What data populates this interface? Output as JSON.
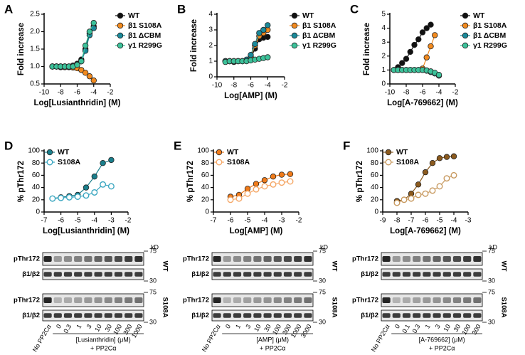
{
  "chart_data": [
    {
      "type": "line",
      "label": "A",
      "ylabel": "Fold increase",
      "xlabel": "Log[Lusianthridin] (M)",
      "legend": "right",
      "xlim": [
        -10,
        -2
      ],
      "xticks": [
        -10,
        -8,
        -6,
        -4,
        -2
      ],
      "ylim": [
        0.5,
        2.5
      ],
      "yticks": [
        0.5,
        {
          "value": 1,
          "label": "1.0"
        },
        1.5,
        {
          "value": 2,
          "label": "2.0"
        },
        2.5
      ],
      "x": [
        -9,
        -8.5,
        -8,
        -7.5,
        -7,
        -6.5,
        -6,
        -5.5,
        -5,
        -4.5,
        -4
      ],
      "series": [
        {
          "name": "WT",
          "color": "#111111",
          "marker": "filled",
          "values": [
            1,
            1,
            0.98,
            1,
            1,
            1.03,
            1.08,
            1.2,
            1.5,
            1.95,
            2.15
          ]
        },
        {
          "name": "β1 S108A",
          "color": "#f28a1e",
          "marker": "filled",
          "values": [
            1,
            1,
            1,
            0.98,
            0.98,
            0.97,
            0.95,
            0.9,
            0.82,
            0.72,
            0.6
          ]
        },
        {
          "name": "β1 ΔCBM",
          "color": "#1a8a9a",
          "marker": "filled",
          "values": [
            1,
            1,
            1,
            1,
            0.99,
            1.02,
            1.05,
            1.15,
            1.45,
            1.9,
            2.1
          ]
        },
        {
          "name": "γ1 R299G",
          "color": "#3cc29a",
          "marker": "filled",
          "values": [
            1,
            1,
            1,
            1,
            1,
            1,
            1.05,
            1.15,
            1.6,
            2.0,
            2.25
          ]
        }
      ]
    },
    {
      "type": "line",
      "label": "B",
      "ylabel": "Fold increase",
      "xlabel": "Log[AMP] (M)",
      "legend": "right",
      "xlim": [
        -10,
        -2
      ],
      "xticks": [
        -10,
        -8,
        -6,
        -4,
        -2
      ],
      "ylim": [
        0,
        4
      ],
      "yticks": [
        0,
        1,
        2,
        3,
        4
      ],
      "x": [
        -9,
        -8.5,
        -8,
        -7.5,
        -7,
        -6.5,
        -6,
        -5.5,
        -5,
        -4.5,
        -4
      ],
      "series": [
        {
          "name": "WT",
          "color": "#111111",
          "marker": "filled",
          "values": [
            1,
            1,
            0.95,
            1,
            1,
            1.02,
            1.2,
            1.8,
            2.4,
            2.5,
            2.55
          ]
        },
        {
          "name": "β1 S108A",
          "color": "#f28a1e",
          "marker": "filled",
          "values": [
            1,
            1,
            1,
            1,
            1,
            1.05,
            1.3,
            2.0,
            2.6,
            2.8,
            3.0
          ]
        },
        {
          "name": "β1 ΔCBM",
          "color": "#1a8a9a",
          "marker": "filled",
          "values": [
            1,
            1,
            1,
            1,
            1,
            1.1,
            1.4,
            2.1,
            2.8,
            3.0,
            3.3
          ]
        },
        {
          "name": "γ1 R299G",
          "color": "#3cc29a",
          "marker": "filled",
          "values": [
            0.95,
            1,
            1,
            1,
            1,
            1,
            1.05,
            1.1,
            1.15,
            1.2,
            1.25
          ]
        }
      ]
    },
    {
      "type": "line",
      "label": "C",
      "ylabel": "Fold increase",
      "xlabel": "Log[A-769662] (M)",
      "legend": "right",
      "xlim": [
        -10,
        -2
      ],
      "xticks": [
        -10,
        -8,
        -6,
        -4,
        -2
      ],
      "ylim": [
        0,
        5
      ],
      "yticks": [
        0,
        1,
        2,
        3,
        4,
        5
      ],
      "x": [
        -9.5,
        -9,
        -8.5,
        -8,
        -7.5,
        -7,
        -6.5,
        -6,
        -5.5,
        -5,
        -4.5,
        -4
      ],
      "series": [
        {
          "name": "WT",
          "color": "#111111",
          "marker": "filled",
          "values": [
            1,
            1.2,
            1.5,
            1.8,
            2.3,
            2.8,
            3.2,
            3.7,
            4.0,
            4.25,
            null,
            null
          ]
        },
        {
          "name": "β1 S108A",
          "color": "#f28a1e",
          "marker": "filled",
          "values": [
            1,
            1,
            1,
            1,
            1,
            1,
            1,
            1.1,
            1.9,
            2.7,
            3.5,
            null
          ]
        },
        {
          "name": "β1 ΔCBM",
          "color": "#1a8a9a",
          "marker": "filled",
          "values": [
            1,
            1,
            1,
            1,
            1,
            1,
            1,
            1,
            0.95,
            0.85,
            0.75,
            0.6
          ]
        },
        {
          "name": "γ1 R299G",
          "color": "#3cc29a",
          "marker": "filled",
          "values": [
            1,
            1,
            1,
            1,
            1,
            1,
            1,
            1,
            0.97,
            0.9,
            0.8,
            0.65
          ]
        }
      ]
    },
    {
      "type": "line",
      "label": "D",
      "ylabel": "% pThr172",
      "xlabel": "Log[Lusianthridin] (M)",
      "legend": "upper left",
      "xlim": [
        -7,
        -2
      ],
      "xticks": [
        -7,
        -6,
        -5,
        -4,
        -3,
        -2
      ],
      "ylim": [
        0,
        100
      ],
      "yticks": [
        0,
        20,
        40,
        60,
        80,
        100
      ],
      "x": [
        -6.5,
        -6,
        -5.5,
        -5,
        -4.5,
        -4,
        -3.5,
        -3
      ],
      "series": [
        {
          "name": "WT",
          "color": "#1a7f8c",
          "marker": "filled",
          "values": [
            22,
            24,
            26,
            28,
            40,
            58,
            80,
            85
          ]
        },
        {
          "name": "S108A",
          "color": "#3aa6c0",
          "marker": "open",
          "values": [
            22,
            23,
            24,
            25,
            27,
            32,
            45,
            42
          ]
        }
      ]
    },
    {
      "type": "line",
      "label": "E",
      "ylabel": "% pThr172",
      "xlabel": "Log[AMP] (M)",
      "legend": "upper left",
      "xlim": [
        -7,
        -2
      ],
      "xticks": [
        -7,
        -6,
        -5,
        -4,
        -3,
        -2
      ],
      "ylim": [
        0,
        100
      ],
      "yticks": [
        0,
        20,
        40,
        60,
        80,
        100
      ],
      "x": [
        -6,
        -5.5,
        -5,
        -4.5,
        -4,
        -3.5,
        -3,
        -2.5
      ],
      "series": [
        {
          "name": "WT",
          "color": "#f07b1a",
          "marker": "filled",
          "values": [
            25,
            28,
            38,
            46,
            52,
            58,
            61,
            62
          ]
        },
        {
          "name": "S108A",
          "color": "#f5a868",
          "marker": "open",
          "values": [
            20,
            22,
            30,
            37,
            42,
            45,
            48,
            50
          ]
        }
      ]
    },
    {
      "type": "line",
      "label": "F",
      "ylabel": "% pThr172",
      "xlabel": "Log[A-769662] (M)",
      "legend": "upper left",
      "xlim": [
        -9,
        -3
      ],
      "xticks": [
        -9,
        -8,
        -7,
        -6,
        -5,
        -4,
        -3
      ],
      "ylim": [
        0,
        100
      ],
      "yticks": [
        0,
        20,
        40,
        60,
        80,
        100
      ],
      "x": [
        -8,
        -7.5,
        -7,
        -6.5,
        -6,
        -5.5,
        -5,
        -4.5,
        -4
      ],
      "series": [
        {
          "name": "WT",
          "color": "#8b5a1e",
          "marker": "filled",
          "values": [
            18,
            20,
            30,
            45,
            65,
            80,
            88,
            90,
            91
          ]
        },
        {
          "name": "S108A",
          "color": "#c89a60",
          "marker": "open",
          "values": [
            15,
            20,
            22,
            28,
            30,
            35,
            42,
            55,
            60
          ]
        }
      ]
    }
  ],
  "blots": [
    {
      "groups": [
        "WT",
        "S108A"
      ],
      "bands": [
        "pThr172",
        "β1/β2"
      ],
      "unit": "kD",
      "markers": [
        "75",
        "30"
      ],
      "lanes": [
        "No PP2Cα",
        "0",
        "0.3",
        "1",
        "3",
        "10",
        "30",
        "100",
        "300",
        "1000"
      ],
      "caption": [
        "[Lusianthridin] (μM)",
        "+ PP2Cα"
      ]
    },
    {
      "groups": [
        "WT",
        "S108A"
      ],
      "bands": [
        "pThr172",
        "β1/β2"
      ],
      "unit": "kD",
      "markers": [
        "75",
        "30"
      ],
      "lanes": [
        "No PP2Cα",
        "0",
        "1",
        "3",
        "10",
        "30",
        "100",
        "300",
        "1000",
        "3000"
      ],
      "caption": [
        "[AMP] (μM)",
        "+ PP2Cα"
      ]
    },
    {
      "groups": [
        "WT",
        "S108A"
      ],
      "bands": [
        "pThr172",
        "β1/β2"
      ],
      "unit": "kD",
      "markers": [
        "75",
        "30"
      ],
      "lanes": [
        "No PP2Cα",
        "0",
        "0.1",
        "0.3",
        "1",
        "3",
        "10",
        "30",
        "100",
        "300"
      ],
      "caption": [
        "[A-769662] (μM)",
        "+ PP2Cα"
      ]
    }
  ]
}
